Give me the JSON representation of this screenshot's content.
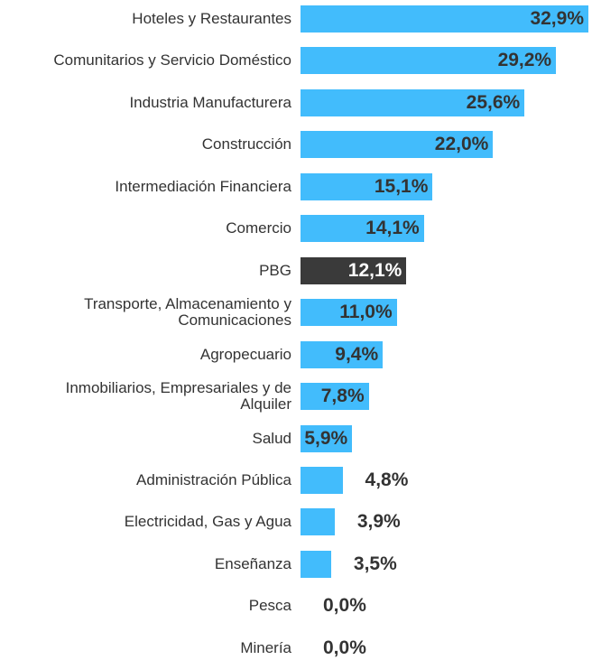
{
  "chart_data": {
    "type": "bar",
    "orientation": "horizontal",
    "categories": [
      "Hoteles y Restaurantes",
      "Comunitarios y Servicio Doméstico",
      "Industria Manufacturera",
      "Construcción",
      "Intermediación Financiera",
      "Comercio",
      "PBG",
      "Transporte, Almacenamiento y\nComunicaciones",
      "Agropecuario",
      "Inmobiliarios, Empresariales y de\nAlquiler",
      "Salud",
      "Administración Pública",
      "Electricidad, Gas y Agua",
      "Enseñanza",
      "Pesca",
      "Minería"
    ],
    "values": [
      32.9,
      29.2,
      25.6,
      22.0,
      15.1,
      14.1,
      12.1,
      11.0,
      9.4,
      7.8,
      5.9,
      4.8,
      3.9,
      3.5,
      0.0,
      0.0
    ],
    "value_labels": [
      "32,9%",
      "29,2%",
      "25,6%",
      "22,0%",
      "15,1%",
      "14,1%",
      "12,1%",
      "11,0%",
      "9,4%",
      "7,8%",
      "5,9%",
      "4,8%",
      "3,9%",
      "3,5%",
      "0,0%",
      "0,0%"
    ],
    "colors": [
      "#42bcfc",
      "#42bcfc",
      "#42bcfc",
      "#42bcfc",
      "#42bcfc",
      "#42bcfc",
      "#3a3a3a",
      "#42bcfc",
      "#42bcfc",
      "#42bcfc",
      "#42bcfc",
      "#42bcfc",
      "#42bcfc",
      "#42bcfc",
      "#42bcfc",
      "#42bcfc"
    ]
  }
}
